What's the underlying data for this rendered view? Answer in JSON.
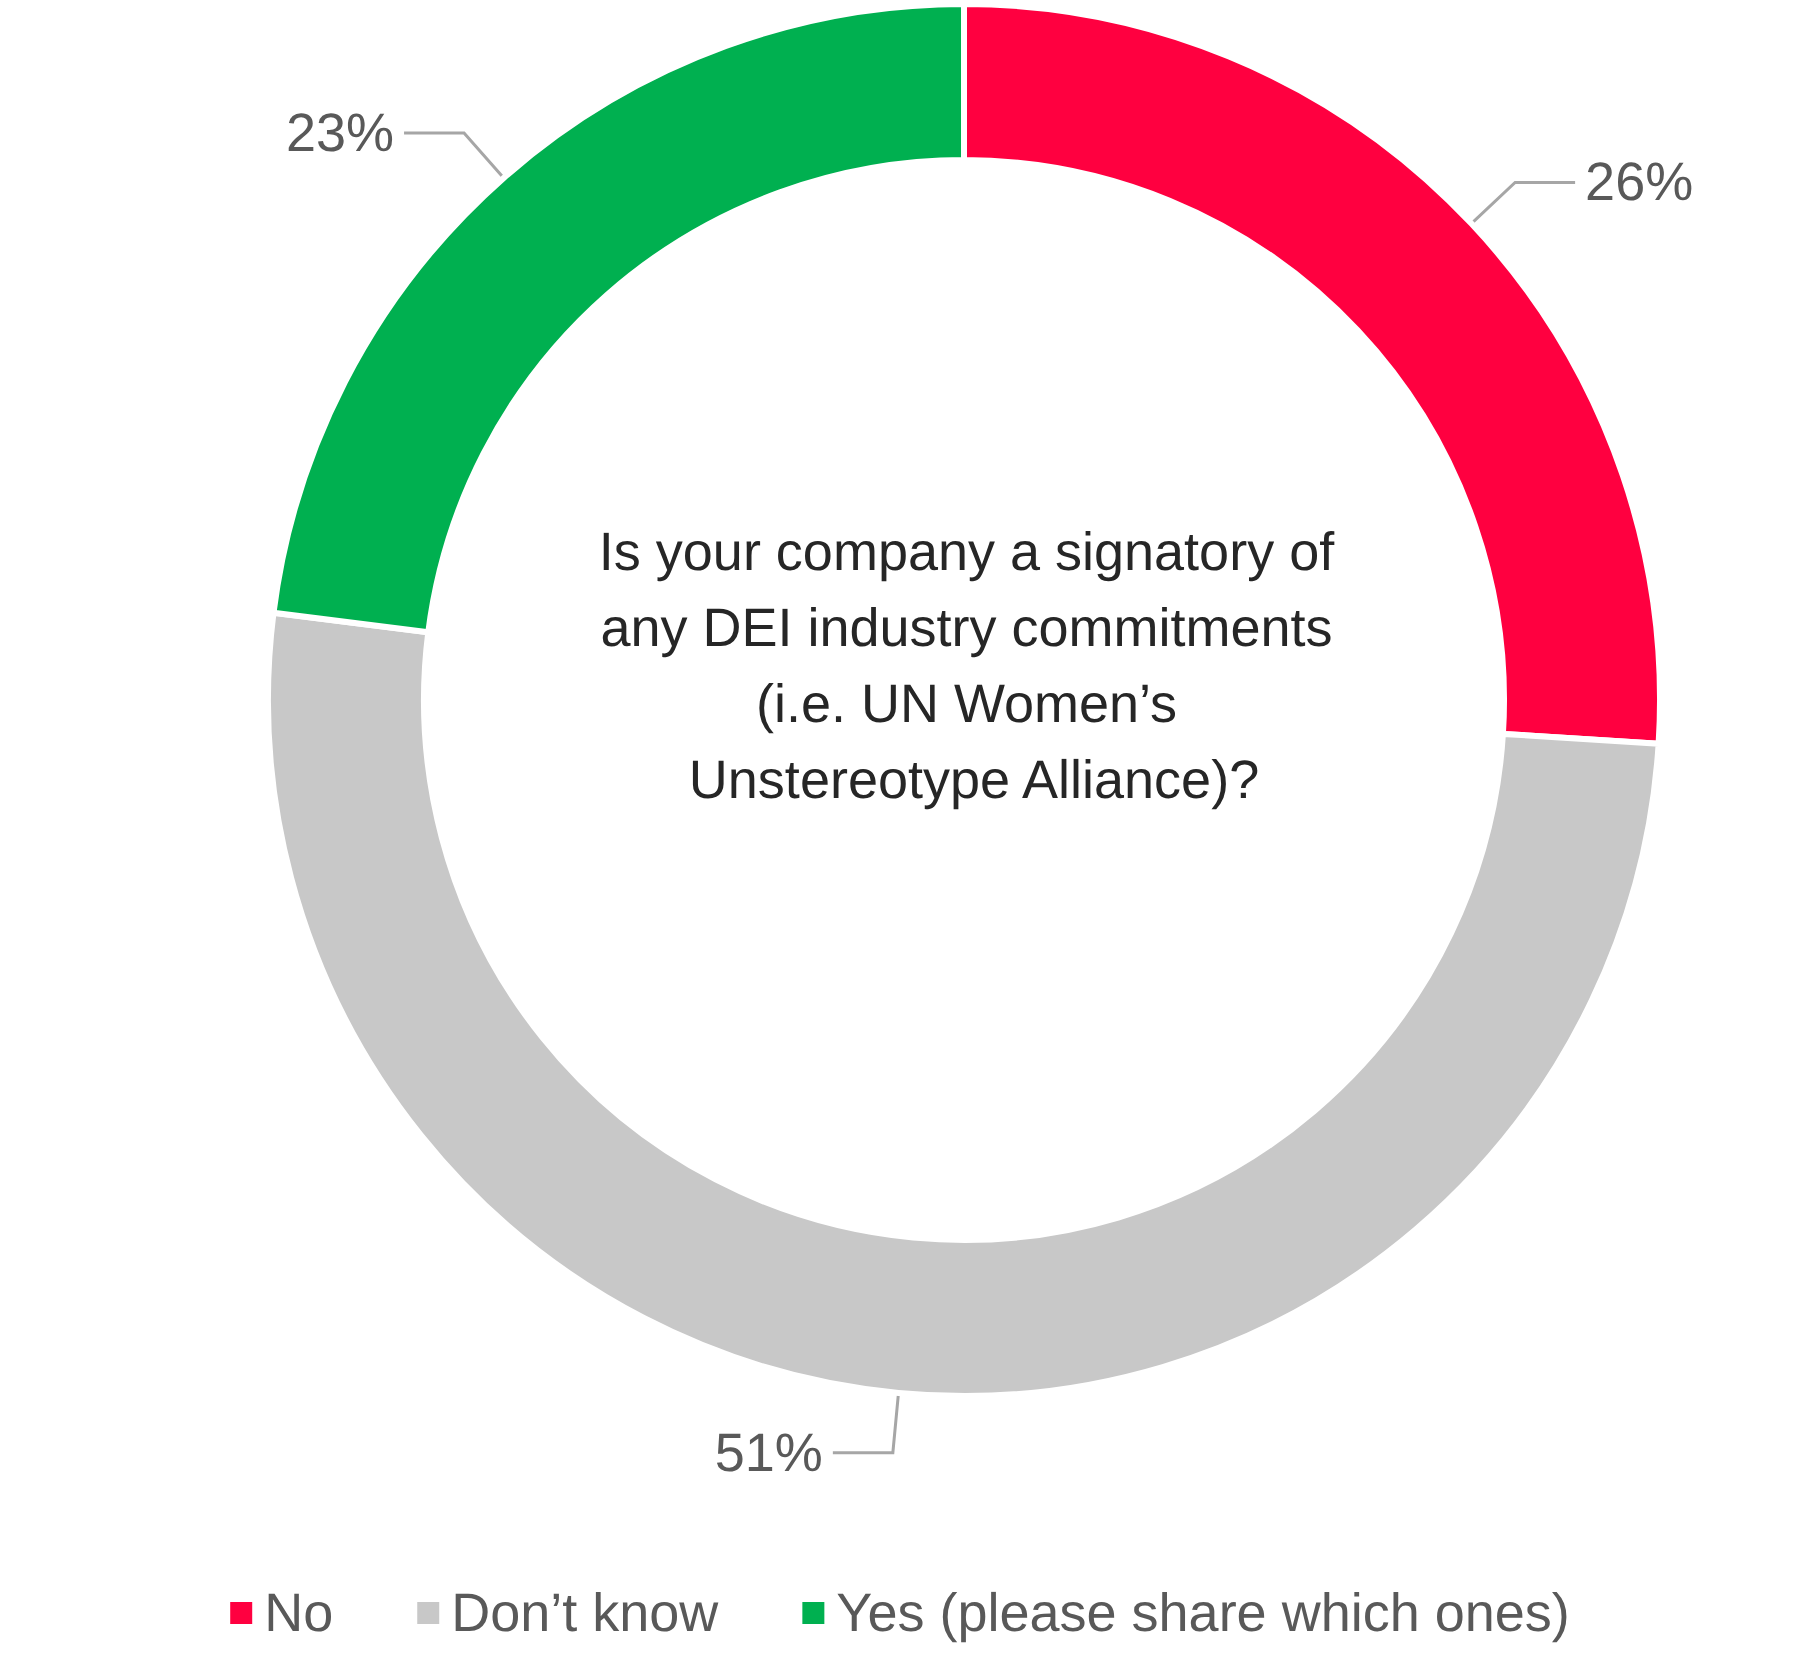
{
  "chart_data": {
    "type": "donut",
    "title": "Is your company a signatory of any DEI industry commitments (i.e. UN Women’s Unstereotype Alliance)?",
    "categories": [
      "No",
      "Don’t know",
      "Yes (please share which ones)"
    ],
    "values": [
      26,
      51,
      23
    ],
    "value_labels": [
      "26%",
      "51%",
      "23%"
    ],
    "colors": [
      "#ff0040",
      "#c8c8c8",
      "#00b050"
    ],
    "legend": "bottom"
  }
}
